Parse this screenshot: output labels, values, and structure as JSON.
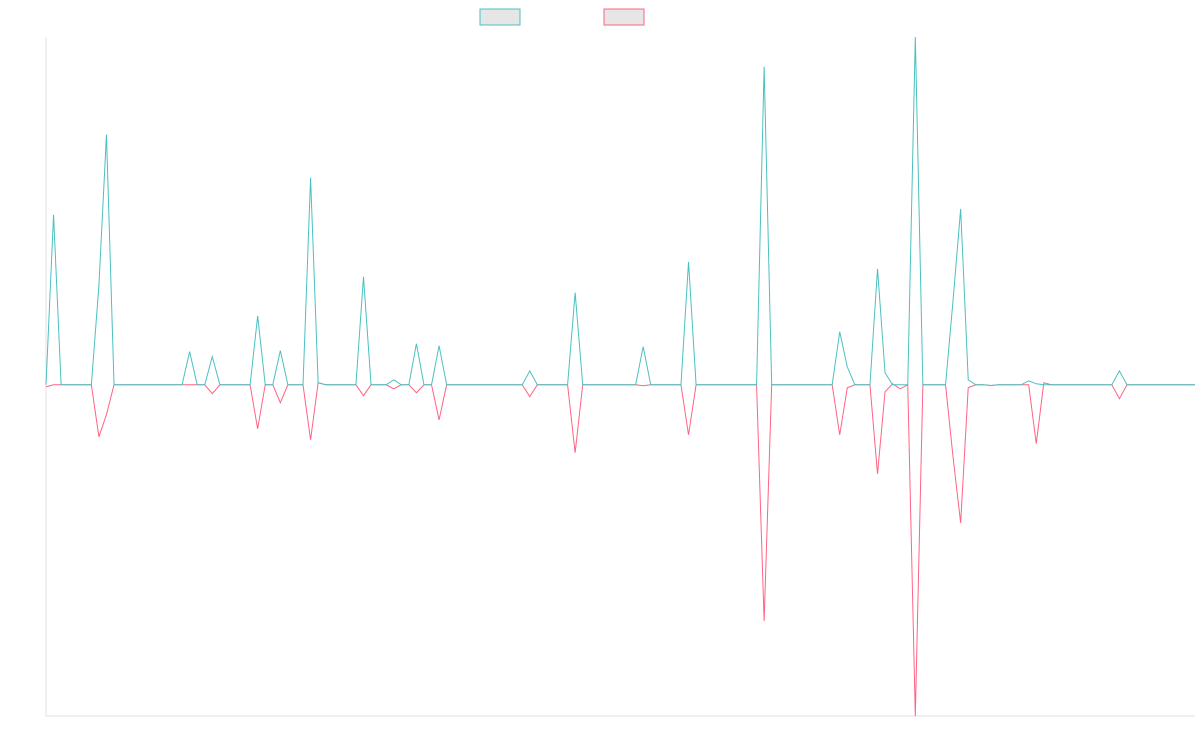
{
  "chart_data": {
    "type": "line",
    "categories": [
      null,
      null,
      null,
      null,
      null,
      null,
      null,
      null,
      null,
      null,
      null,
      null,
      null,
      null,
      null,
      null,
      null,
      null,
      null,
      null,
      null,
      null,
      null,
      null,
      null,
      null,
      null,
      null,
      null,
      null,
      null,
      null,
      null,
      null,
      null,
      null,
      null,
      null,
      null,
      null,
      null,
      null,
      null,
      null,
      null,
      null,
      null,
      null,
      null,
      null,
      null,
      null,
      null,
      null,
      null,
      null,
      null,
      null,
      null,
      null,
      null,
      null,
      null,
      null,
      null,
      null,
      null,
      null,
      null,
      null,
      null,
      null,
      null,
      null,
      null,
      null,
      null,
      null,
      null,
      null,
      null,
      null,
      null,
      null,
      null,
      null,
      null,
      null,
      null,
      null,
      null,
      null,
      null,
      null,
      null,
      null,
      null,
      null,
      null,
      null,
      null,
      null,
      null,
      null,
      null,
      null,
      null,
      null,
      null,
      null,
      null,
      null,
      null,
      null,
      null,
      null,
      null,
      null,
      null,
      null,
      null,
      null,
      null,
      null,
      null,
      null,
      null,
      null,
      null,
      null,
      null,
      null,
      null,
      null,
      null,
      null,
      null,
      null,
      null,
      null,
      null,
      null,
      null,
      null,
      null,
      null,
      null,
      null,
      null,
      null,
      null,
      null,
      null
    ],
    "series": [
      {
        "color": "#4bc0c0",
        "values": [
          0,
          51.3,
          0,
          0,
          0,
          0,
          0,
          30,
          75.5,
          0,
          0,
          0,
          0,
          0,
          0,
          0,
          0,
          0,
          0,
          10,
          0,
          0,
          8.5,
          0,
          0,
          0,
          0,
          0,
          20.8,
          0,
          0,
          10.3,
          0,
          0,
          0,
          62.5,
          0.6,
          0,
          0,
          0,
          0,
          0,
          32.6,
          0,
          0,
          0,
          1.5,
          0,
          0,
          12.4,
          0,
          0,
          11.8,
          0,
          0,
          0,
          0,
          0,
          0,
          0,
          0,
          0,
          0,
          0,
          4.2,
          0,
          0,
          0,
          0,
          0,
          27.8,
          0,
          0,
          0,
          0,
          0,
          0,
          0,
          0,
          11.5,
          0,
          0,
          0,
          0,
          0,
          37.1,
          0,
          0,
          0,
          0,
          0,
          0,
          0,
          0,
          0,
          96,
          0,
          0,
          0,
          0,
          0,
          0,
          0,
          0,
          0,
          16,
          5.4,
          0,
          0,
          0,
          35,
          3.6,
          0,
          0,
          0,
          105,
          0,
          0,
          0,
          0,
          25.7,
          53.1,
          1.5,
          0,
          0,
          -0.2,
          0,
          0,
          0,
          0,
          1.2,
          0.3,
          0,
          0,
          0,
          0,
          0,
          0,
          0,
          0,
          0,
          0,
          4.2,
          0,
          0,
          0,
          0,
          0,
          0,
          0,
          0,
          0,
          0
        ]
      },
      {
        "color": "#ff6384",
        "values": [
          -0.6,
          0,
          0,
          0,
          0,
          0,
          0,
          -15.7,
          -9,
          0,
          0,
          0,
          0,
          0,
          0,
          0,
          0,
          0,
          0,
          0,
          0,
          0,
          -2.7,
          0,
          0,
          0,
          0,
          0,
          -13.3,
          0,
          0,
          -5.4,
          0,
          0,
          0,
          -16.6,
          0.6,
          0,
          0,
          0,
          0,
          0,
          -3.3,
          0,
          0,
          0,
          -1.2,
          0,
          0,
          -2.4,
          0,
          0,
          -10.6,
          0,
          0,
          0,
          0,
          0,
          0,
          0,
          0,
          0,
          0,
          0,
          -3.6,
          0,
          0,
          0,
          0,
          0,
          -20.5,
          0,
          0,
          0,
          0,
          0,
          0,
          0,
          0,
          -0.3,
          0,
          0,
          0,
          0,
          0,
          -15.1,
          0,
          0,
          0,
          0,
          0,
          0,
          0,
          0,
          0,
          -71.3,
          0,
          0,
          0,
          0,
          0,
          0,
          0,
          0,
          0,
          -15.1,
          -0.9,
          0,
          0,
          0,
          -26.9,
          -2.1,
          0.3,
          -1.2,
          0,
          -100,
          0,
          0,
          0,
          0,
          -22,
          -41.7,
          -0.9,
          0,
          0,
          -0.2,
          0,
          0,
          0,
          0,
          0,
          -17.8,
          0.6,
          0,
          0,
          0,
          0,
          0,
          0,
          0,
          0,
          0,
          -4.2,
          0,
          0,
          0,
          0,
          0,
          0,
          0,
          0,
          0,
          0
        ]
      }
    ],
    "ylim": [
      -100,
      105
    ]
  }
}
